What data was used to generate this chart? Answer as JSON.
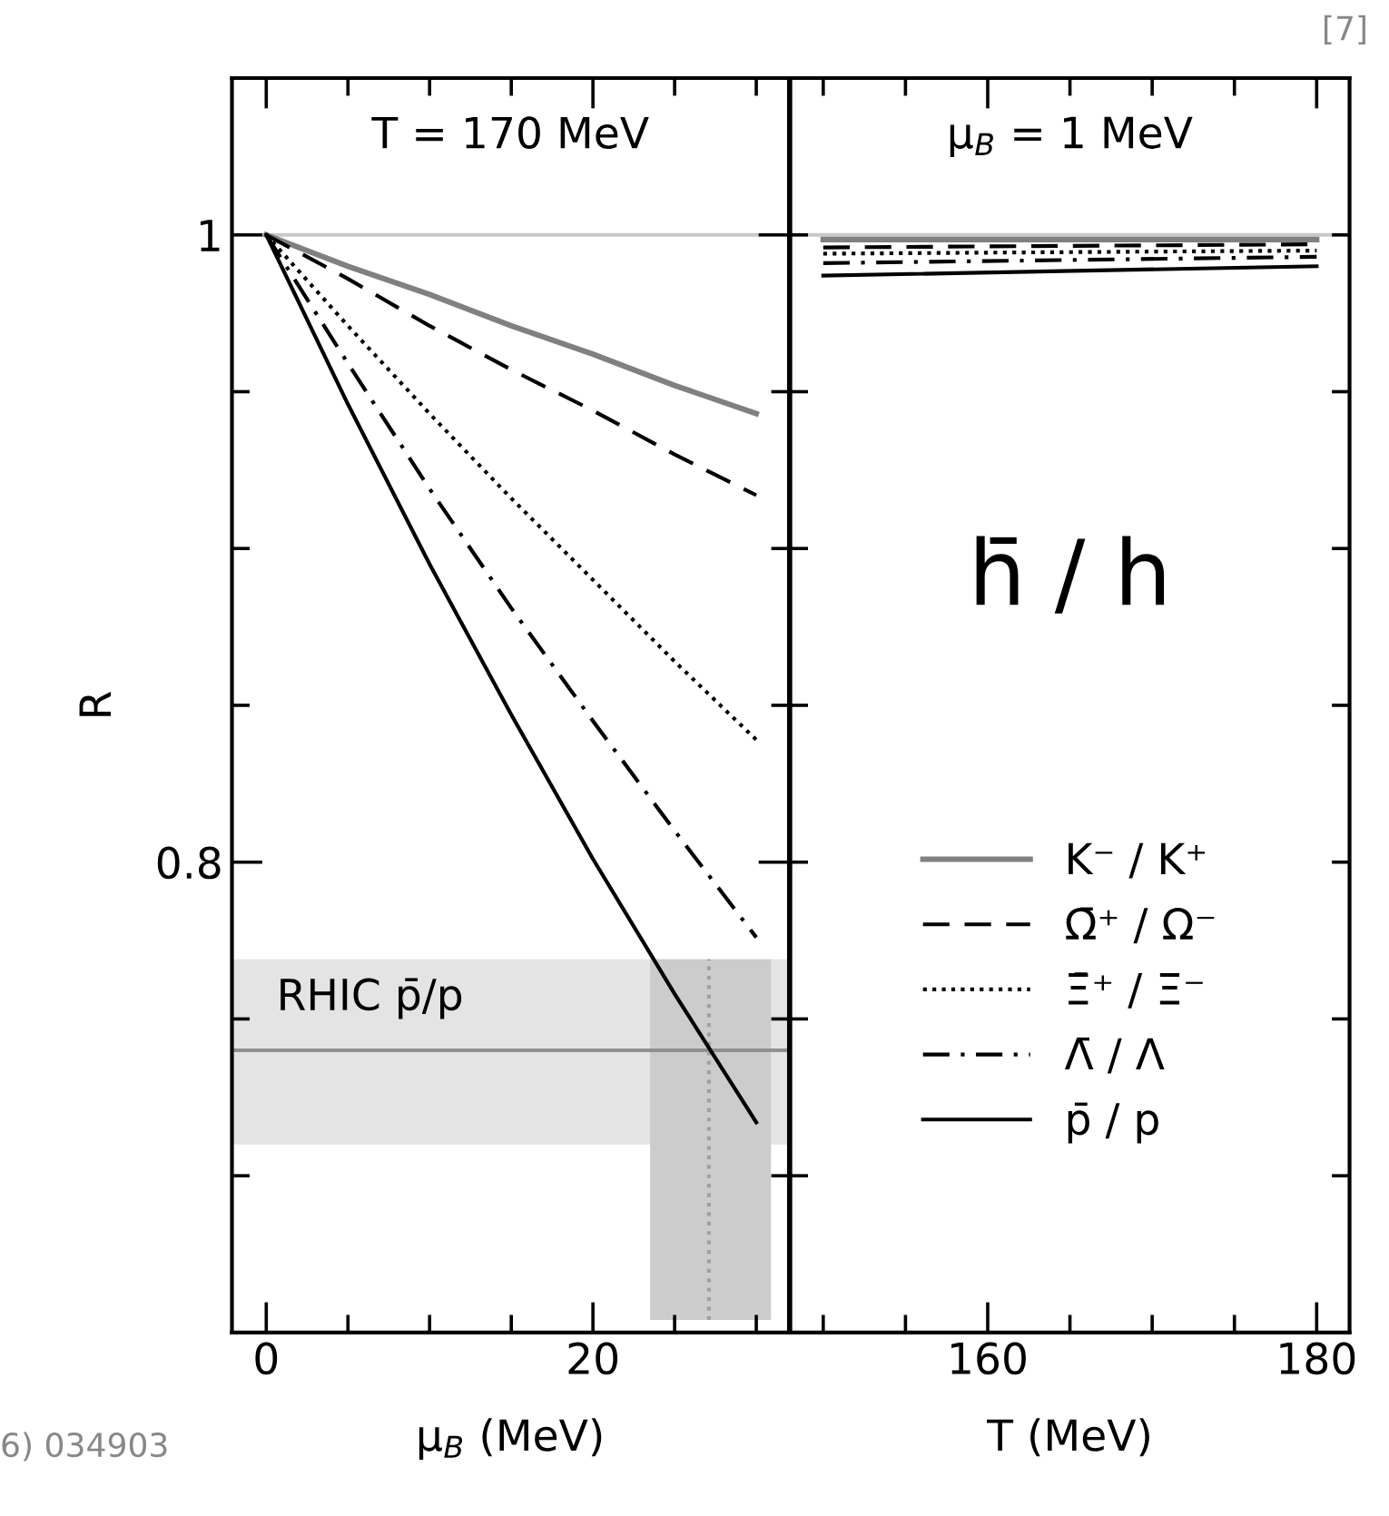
{
  "chart_data": [
    {
      "type": "line",
      "title": "T = 170 MeV",
      "xlabel": "μ$_{B}$ (MeV)",
      "ylabel": "R",
      "x": [
        0,
        5,
        10,
        15,
        20,
        25,
        30
      ],
      "series": [
        {
          "color": "#808080",
          "line_style": "solid",
          "values": [
            1,
            0.99,
            0.981,
            0.971,
            0.962,
            0.952,
            0.943
          ]
        },
        {
          "color": "#000000",
          "line_style": "dashed",
          "values": [
            1,
            0.986,
            0.971,
            0.957,
            0.944,
            0.93,
            0.917
          ]
        },
        {
          "color": "#000000",
          "line_style": "dotted",
          "values": [
            1,
            0.971,
            0.943,
            0.916,
            0.89,
            0.864,
            0.839
          ]
        },
        {
          "color": "#000000",
          "line_style": "dashdot",
          "values": [
            1,
            0.959,
            0.919,
            0.881,
            0.845,
            0.81,
            0.776
          ]
        },
        {
          "color": "#000000",
          "line_style": "solid",
          "values": [
            1,
            0.946,
            0.895,
            0.847,
            0.801,
            0.758,
            0.717
          ]
        }
      ],
      "xlim": [
        -2.1,
        32
      ],
      "xticks": [
        0,
        {
          "value": 5,
          "label": null
        },
        {
          "value": 10,
          "label": null
        },
        {
          "value": 15,
          "label": null
        },
        20,
        {
          "value": 25,
          "label": null
        },
        {
          "value": 30,
          "label": null
        }
      ],
      "ylim": [
        0.65,
        1.05
      ],
      "yticks": [
        {
          "value": 0.65,
          "label": null
        },
        {
          "value": 0.7,
          "label": null
        },
        {
          "value": 0.75,
          "label": null
        },
        0.8,
        {
          "value": 0.85,
          "label": null
        },
        {
          "value": 0.9,
          "label": null
        },
        {
          "value": 0.95,
          "label": null
        },
        1
      ],
      "ref_lines": [
        {
          "axis": "y",
          "value": 1,
          "color": "#c8c8c8",
          "line_style": "solid"
        },
        {
          "axis": "y",
          "value": 0.74,
          "label": "RHIC p̄/p",
          "color": "#909090",
          "line_style": "solid"
        },
        {
          "axis": "x",
          "value": 27.1,
          "color": "#a0a0a0",
          "line_style": "dotted"
        }
      ],
      "bands": [
        {
          "axis": "y",
          "from": 0.71,
          "to": 0.769,
          "color": "#e4e4e4"
        },
        {
          "axis": "x",
          "from": 23.5,
          "to": 30.9,
          "color": "#cccccc"
        }
      ],
      "annotations": [
        "6) 034903"
      ],
      "grid": false,
      "legend": false
    },
    {
      "type": "line",
      "title": "μ$_{B}$ = 1 MeV",
      "xlabel": "T (MeV)",
      "x": [
        150,
        180
      ],
      "series": [
        {
          "name": "K⁻ / K⁺",
          "color": "#808080",
          "line_style": "solid",
          "values": [
            0.9985,
            0.9985
          ]
        },
        {
          "name": "Ω̄⁺ / Ω⁻",
          "color": "#000000",
          "line_style": "dashed",
          "values": [
            0.996,
            0.997
          ]
        },
        {
          "name": "Ξ̄⁺ / Ξ⁻",
          "color": "#000000",
          "line_style": "dotted",
          "values": [
            0.994,
            0.995
          ]
        },
        {
          "name": "Λ̄ / Λ",
          "color": "#000000",
          "line_style": "dashdot",
          "values": [
            0.991,
            0.993
          ]
        },
        {
          "name": "p̄ / p",
          "color": "#000000",
          "line_style": "solid",
          "values": [
            0.987,
            0.99
          ]
        }
      ],
      "xlim": [
        148,
        182
      ],
      "xticks": [
        {
          "value": 150,
          "label": null
        },
        {
          "value": 155,
          "label": null
        },
        160,
        {
          "value": 165,
          "label": null
        },
        {
          "value": 170,
          "label": null
        },
        {
          "value": 175,
          "label": null
        },
        180
      ],
      "ylim": [
        0.65,
        1.05
      ],
      "yticks": [
        {
          "value": 0.65,
          "label": null
        },
        {
          "value": 0.7,
          "label": null
        },
        {
          "value": 0.75,
          "label": null
        },
        {
          "value": 0.8,
          "label": null
        },
        {
          "value": 0.85,
          "label": null
        },
        {
          "value": 0.9,
          "label": null
        },
        {
          "value": 0.95,
          "label": null
        },
        {
          "value": 1,
          "label": null
        }
      ],
      "ref_lines": [
        {
          "axis": "y",
          "value": 1,
          "color": "#c8c8c8",
          "line_style": "solid"
        }
      ],
      "annotations": [
        "h̄ / h",
        "[7]"
      ],
      "tick_labels": "x",
      "grid": false,
      "legend": "bottom"
    }
  ]
}
